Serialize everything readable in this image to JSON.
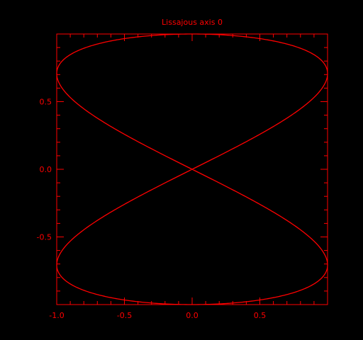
{
  "colors": {
    "background": "#000000",
    "foreground": "#ff0000"
  },
  "chart_data": {
    "type": "line",
    "title": "Lissajous axis 0",
    "xlabel": "",
    "ylabel": "",
    "xlim": [
      -1.0,
      1.0
    ],
    "ylim": [
      -1.0,
      1.0
    ],
    "grid": false,
    "xticks": [
      -1.0,
      -0.5,
      0.0,
      0.5
    ],
    "xtick_labels": [
      "-1.0",
      "-0.5",
      "0.0",
      "0.5"
    ],
    "yticks": [
      -0.5,
      0.0,
      0.5
    ],
    "ytick_labels": [
      "-0.5",
      "0.0",
      "0.5"
    ],
    "series": [
      {
        "curve": "lissajous",
        "x_function": "sin(2t)",
        "y_function": "cos(t)",
        "t_range": [
          0,
          6.2832
        ],
        "x": [
          0.0,
          0.866,
          0.866,
          0.0,
          -0.866,
          -0.866,
          0.0,
          0.866,
          0.866,
          0.0,
          -0.866,
          -0.866,
          0.0
        ],
        "y": [
          1.0,
          0.866,
          0.5,
          0.0,
          -0.5,
          -0.866,
          -1.0,
          -0.866,
          -0.5,
          0.0,
          0.5,
          0.866,
          1.0
        ]
      }
    ]
  }
}
